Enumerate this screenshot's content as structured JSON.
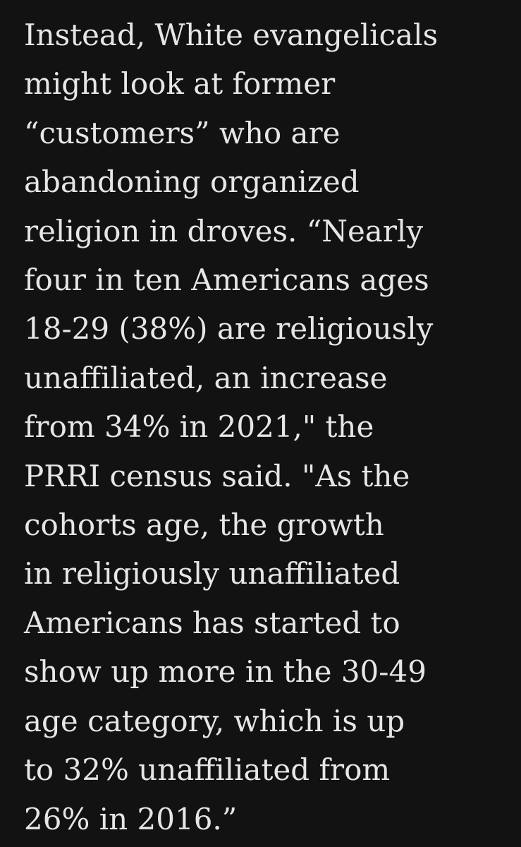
{
  "article": {
    "lines": [
      "Instead, White evangelicals",
      "might look at former",
      "“customers” who are",
      "abandoning organized",
      "religion in droves. “Nearly",
      "four in ten Americans ages",
      "18-29 (38%) are religiously",
      "unaffiliated, an increase",
      "from 34% in 2021,\" the",
      "PRRI census said. \"As the",
      "cohorts age, the growth",
      "in religiously unaffiliated",
      "Americans has started to",
      "show up more in the 30-49",
      "age category, which is up",
      "to 32% unaffiliated from",
      "26% in 2016.”"
    ]
  }
}
